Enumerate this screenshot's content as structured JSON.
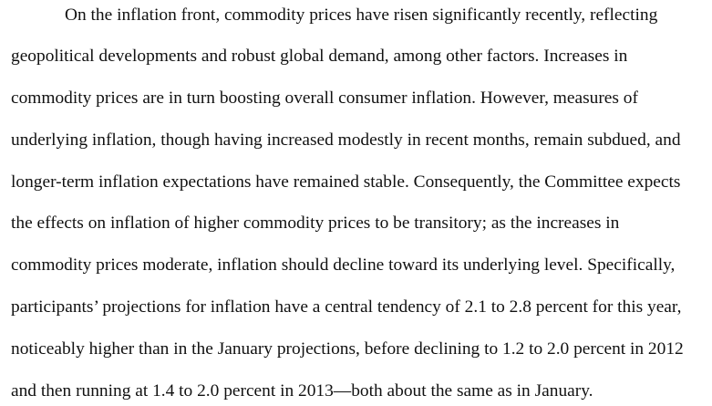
{
  "document": {
    "paragraph_lines": [
      "On the inflation front, commodity prices have risen significantly recently, reflecting",
      "geopolitical developments and robust global demand, among other factors.  Increases in",
      "commodity prices are in turn boosting overall consumer inflation.  However, measures of",
      "underlying inflation, though having increased modestly in recent months, remain subdued, and",
      "longer-term inflation expectations have remained stable.  Consequently, the Committee expects",
      "the effects on inflation of higher commodity prices to be transitory; as the increases in",
      "commodity prices moderate, inflation should decline toward its underlying level.  Specifically,",
      "participants’ projections for inflation have a central tendency of 2.1 to 2.8 percent for this year,",
      "noticeably higher than in the January projections, before declining to 1.2 to 2.0 percent in 2012",
      "and then running at 1.4 to 2.0 percent in 2013—both about the same as in January."
    ]
  }
}
